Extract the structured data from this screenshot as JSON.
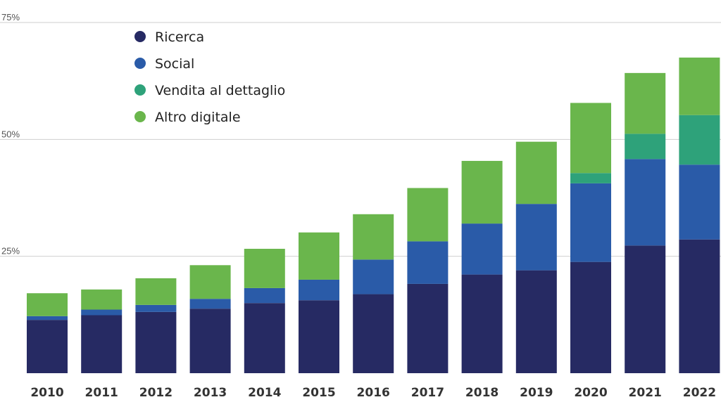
{
  "chart_data": {
    "type": "bar",
    "stacked": true,
    "categories": [
      "2010",
      "2011",
      "2012",
      "2013",
      "2014",
      "2015",
      "2016",
      "2017",
      "2018",
      "2019",
      "2020",
      "2021",
      "2022"
    ],
    "series": [
      {
        "name": "Ricerca",
        "color": "#262a63",
        "values": [
          11.4,
          12.4,
          13.1,
          13.8,
          15.0,
          15.6,
          16.9,
          19.1,
          21.1,
          22.0,
          23.8,
          27.3,
          28.6
        ]
      },
      {
        "name": "Social",
        "color": "#2a5ba8",
        "values": [
          0.8,
          1.2,
          1.5,
          2.1,
          3.2,
          4.4,
          7.4,
          9.1,
          10.9,
          14.2,
          16.8,
          18.5,
          16.0
        ]
      },
      {
        "name": "Vendita al dettaglio",
        "color": "#2ea27a",
        "values": [
          0,
          0,
          0,
          0,
          0,
          0,
          0,
          0,
          0,
          0,
          2.2,
          5.4,
          10.6
        ]
      },
      {
        "name": "Altro digitale",
        "color": "#6ab64c",
        "values": [
          4.9,
          4.3,
          5.7,
          7.2,
          8.4,
          10.1,
          9.7,
          11.4,
          13.4,
          13.3,
          15.0,
          13.0,
          12.3
        ]
      }
    ],
    "yticks": [
      25,
      50,
      75
    ],
    "ytick_labels": [
      "25%",
      "50%",
      "75%"
    ],
    "ylim": [
      0,
      75
    ],
    "grid": true,
    "legend_position": "top-left"
  }
}
